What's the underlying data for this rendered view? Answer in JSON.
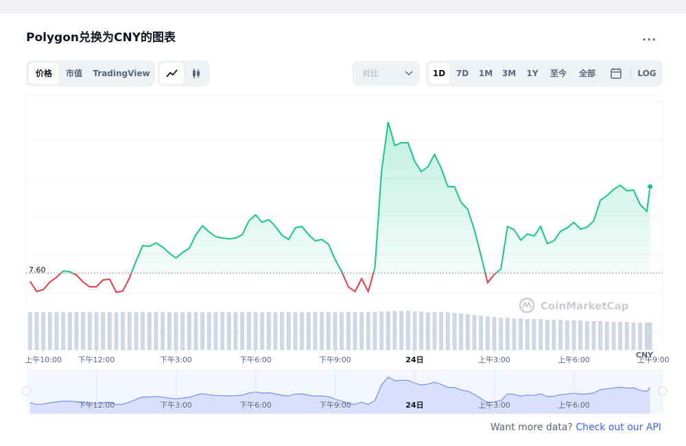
{
  "header": {
    "title": "Polygon兑换为CNY的图表",
    "more": "..."
  },
  "tabs": [
    "价格",
    "市值",
    "TradingView"
  ],
  "compare": "对比",
  "ranges": [
    "1D",
    "7D",
    "1M",
    "3M",
    "1Y",
    "至今",
    "全部"
  ],
  "log": "LOG",
  "watermark": "CoinMarketCap",
  "footer": {
    "text": "Want more data?",
    "link": "Check out our API"
  },
  "chart_data": {
    "type": "line",
    "unit": "CNY",
    "x": [
      9.5,
      9.75,
      10,
      10.25,
      10.5,
      10.75,
      11,
      11.25,
      11.5,
      11.75,
      12,
      12.25,
      12.5,
      12.75,
      13,
      13.25,
      13.5,
      13.75,
      14,
      14.25,
      14.5,
      14.75,
      15,
      15.25,
      15.5,
      15.75,
      16,
      16.25,
      16.5,
      16.75,
      17,
      17.25,
      17.5,
      17.75,
      18,
      18.25,
      18.5,
      18.75,
      19,
      19.25,
      19.5,
      19.75,
      20,
      20.25,
      20.5,
      20.75,
      21,
      21.25,
      21.5,
      21.75,
      22,
      22.25,
      22.5,
      22.75,
      23,
      23.25,
      23.5,
      23.75,
      24,
      24.25,
      24.5,
      24.75,
      25,
      25.25,
      25.5,
      25.75,
      26,
      26.25,
      26.5,
      26.75,
      27,
      27.25,
      27.5,
      27.75,
      28,
      28.25,
      28.5,
      28.75,
      29,
      29.25,
      29.5,
      29.75,
      30,
      30.25,
      30.5,
      30.75,
      31,
      31.25,
      31.5,
      31.75,
      32,
      32.25,
      32.5,
      32.75,
      32.875
    ],
    "series": [
      {
        "name": "价格",
        "color": "#16c784",
        "down_color": "#ea3943",
        "values": [
          7.588,
          7.573,
          7.576,
          7.587,
          7.594,
          7.603,
          7.602,
          7.597,
          7.587,
          7.58,
          7.58,
          7.59,
          7.591,
          7.572,
          7.574,
          7.593,
          7.618,
          7.64,
          7.639,
          7.644,
          7.638,
          7.629,
          7.622,
          7.63,
          7.636,
          7.656,
          7.669,
          7.66,
          7.653,
          7.651,
          7.65,
          7.651,
          7.656,
          7.676,
          7.685,
          7.674,
          7.678,
          7.668,
          7.655,
          7.649,
          7.666,
          7.668,
          7.656,
          7.647,
          7.649,
          7.642,
          7.62,
          7.602,
          7.58,
          7.573,
          7.592,
          7.573,
          7.608,
          7.748,
          7.82,
          7.786,
          7.79,
          7.79,
          7.763,
          7.748,
          7.755,
          7.773,
          7.753,
          7.726,
          7.726,
          7.703,
          7.693,
          7.663,
          7.626,
          7.586,
          7.598,
          7.606,
          7.668,
          7.663,
          7.648,
          7.657,
          7.654,
          7.668,
          7.643,
          7.647,
          7.661,
          7.666,
          7.674,
          7.664,
          7.667,
          7.676,
          7.706,
          7.713,
          7.722,
          7.728,
          7.72,
          7.721,
          7.7,
          7.69,
          7.726
        ]
      }
    ],
    "volume": {
      "color": "#cfd6e4",
      "ylim": [
        0,
        60
      ],
      "values": [
        55,
        55,
        55,
        55,
        55,
        55,
        55,
        55,
        55,
        55,
        55,
        55,
        55,
        55,
        55,
        55,
        55,
        55,
        55,
        55,
        55,
        55,
        55,
        55,
        55,
        55,
        55,
        55,
        55,
        55,
        55,
        55,
        55,
        55,
        55,
        55,
        55,
        55,
        55,
        55,
        55,
        55,
        55,
        55,
        55,
        55,
        55,
        55,
        55,
        55,
        55,
        55,
        55,
        56,
        56,
        57,
        57,
        57,
        56,
        56,
        55,
        55,
        55,
        55,
        54,
        53,
        52,
        51,
        50,
        49,
        48,
        47,
        47,
        46,
        46,
        45,
        45,
        45,
        44,
        44,
        44,
        43,
        43,
        43,
        42,
        42,
        42,
        41,
        41,
        41,
        41,
        40,
        40,
        40,
        40
      ]
    },
    "reference": {
      "value": 7.6,
      "label": "7.60"
    },
    "xlim": [
      9.35,
      33.35
    ],
    "ylim": [
      7.488,
      7.86
    ],
    "xticks": [
      {
        "value": 10,
        "label": "上午10:00"
      },
      {
        "value": 12,
        "label": "下午12:00"
      },
      {
        "value": 15,
        "label": "下午3:00"
      },
      {
        "value": 18,
        "label": "下午6:00"
      },
      {
        "value": 21,
        "label": "下午9:00"
      },
      {
        "value": 24,
        "label": "24日"
      },
      {
        "value": 27,
        "label": "上午3:00"
      },
      {
        "value": 30,
        "label": "上午6:00"
      },
      {
        "value": 33,
        "label": "上午9:00"
      }
    ],
    "navigator_xticks": [
      {
        "value": 12,
        "label": "下午12:00"
      },
      {
        "value": 15,
        "label": "下午3:00"
      },
      {
        "value": 18,
        "label": "下午6:00"
      },
      {
        "value": 21,
        "label": "下午9:00"
      },
      {
        "value": 24,
        "label": "24日"
      },
      {
        "value": 27,
        "label": "上午3:00"
      },
      {
        "value": 30,
        "label": "上午6:00"
      }
    ]
  }
}
